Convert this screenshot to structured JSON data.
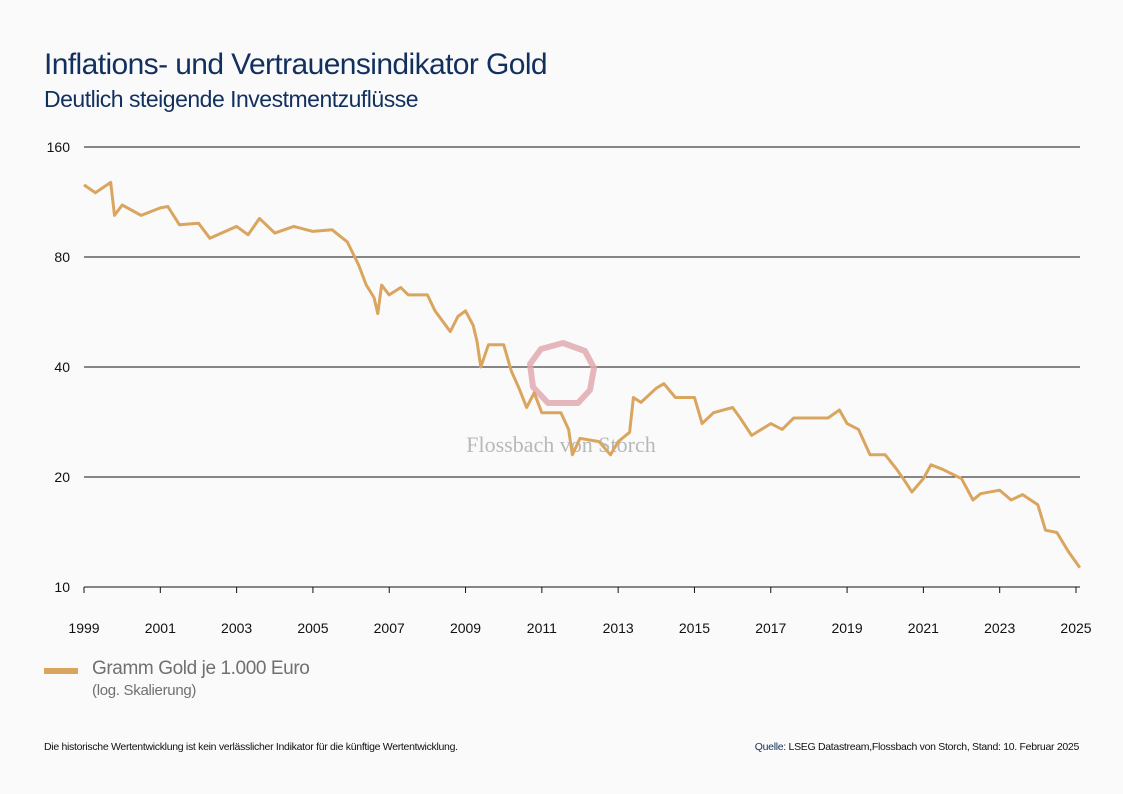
{
  "header": {
    "title": "Inflations- und Vertrauensindikator Gold",
    "subtitle": "Deutlich steigende Investmentzuflüsse"
  },
  "watermark": "Flossbach von Storch",
  "legend": {
    "label": "Gramm Gold je 1.000 Euro",
    "note": "(log. Skalierung)"
  },
  "footer": {
    "disclaimer": "Die historische Wertentwicklung ist kein verlässlicher Indikator für die künftige Wertentwicklung.",
    "source_label": "Quelle:",
    "source_text": " LSEG Datastream,Flossbach von Storch, Stand: 10. Februar 2025"
  },
  "colors": {
    "line": "#d9a55f",
    "title": "#12305e",
    "watermark": "#e2a9b1"
  },
  "chart_data": {
    "type": "line",
    "y_scale": "log",
    "ylim": [
      10,
      160
    ],
    "yticks": [
      "160",
      "80",
      "40",
      "20",
      "10"
    ],
    "ytick_values": [
      160,
      80,
      40,
      20,
      10
    ],
    "xlim": [
      1999,
      2025.1
    ],
    "xticks": [
      "1999",
      "2001",
      "2003",
      "2005",
      "2007",
      "2009",
      "2011",
      "2013",
      "2015",
      "2017",
      "2019",
      "2021",
      "2023",
      "2025"
    ],
    "grid": "horizontal",
    "legend_position": "bottom-left",
    "series": [
      {
        "name": "Gramm Gold je 1.000 Euro",
        "x": [
          1999.0,
          1999.3,
          1999.7,
          1999.8,
          2000.0,
          2000.5,
          2001.0,
          2001.2,
          2001.5,
          2002.0,
          2002.3,
          2003.0,
          2003.3,
          2003.6,
          2004.0,
          2004.5,
          2005.0,
          2005.5,
          2005.9,
          2006.2,
          2006.4,
          2006.6,
          2006.7,
          2006.8,
          2007.0,
          2007.3,
          2007.5,
          2008.0,
          2008.2,
          2008.6,
          2008.8,
          2009.0,
          2009.2,
          2009.3,
          2009.4,
          2009.6,
          2010.0,
          2010.2,
          2010.4,
          2010.6,
          2010.8,
          2011.0,
          2011.5,
          2011.7,
          2011.8,
          2012.0,
          2012.5,
          2012.8,
          2013.0,
          2013.3,
          2013.4,
          2013.6,
          2014.0,
          2014.2,
          2014.5,
          2015.0,
          2015.2,
          2015.5,
          2016.0,
          2016.2,
          2016.5,
          2017.0,
          2017.3,
          2017.6,
          2018.0,
          2018.5,
          2018.8,
          2019.0,
          2019.3,
          2019.6,
          2020.0,
          2020.3,
          2020.5,
          2020.7,
          2021.0,
          2021.2,
          2021.5,
          2022.0,
          2022.3,
          2022.5,
          2023.0,
          2023.3,
          2023.6,
          2024.0,
          2024.2,
          2024.5,
          2024.8,
          2025.1
        ],
        "y": [
          126,
          120,
          128,
          104,
          111,
          104,
          109,
          110,
          98,
          99,
          90,
          97,
          92,
          102,
          93,
          97,
          94,
          95,
          88,
          76,
          67,
          62,
          56,
          67,
          63,
          66,
          63,
          63,
          57,
          50,
          55,
          57,
          52,
          47,
          40,
          46,
          46,
          39,
          35,
          31,
          34,
          30,
          30,
          27,
          23,
          25.5,
          25,
          23,
          25,
          26.5,
          33,
          32,
          35,
          36,
          33,
          33,
          28,
          30,
          31,
          29,
          26,
          28,
          27,
          29,
          29,
          29,
          30.5,
          28,
          27,
          23,
          23,
          21,
          19.6,
          18.2,
          19.8,
          21.6,
          21,
          19.8,
          17.3,
          18,
          18.4,
          17.3,
          17.9,
          16.8,
          14.3,
          14.1,
          12.5,
          11.3
        ]
      }
    ]
  }
}
